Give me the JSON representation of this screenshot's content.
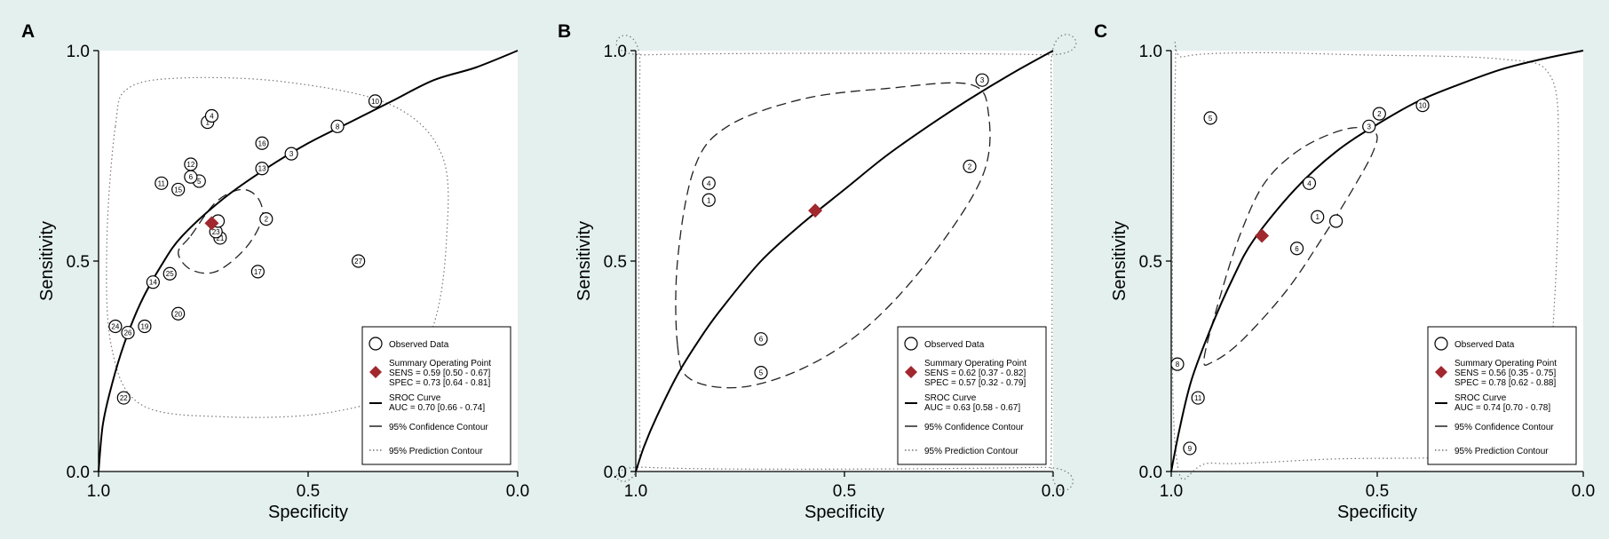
{
  "colors": {
    "background": "#e3f0ee",
    "plot_bg": "#ffffff",
    "summary_point": "#a0282e",
    "curve": "#000000"
  },
  "chart_data": [
    {
      "panel": "A",
      "type": "scatter",
      "xlabel": "Specificity",
      "ylabel": "Sensitivity",
      "x_reversed": true,
      "xlim": [
        1.0,
        0.0
      ],
      "ylim": [
        0.0,
        1.0
      ],
      "x_ticks": [
        "1.0",
        "0.5",
        "0.0"
      ],
      "y_ticks": [
        "0.0",
        "0.5",
        "1.0"
      ],
      "observed": [
        {
          "label": "1",
          "spec": 0.74,
          "sens": 0.83
        },
        {
          "label": "2",
          "spec": 0.6,
          "sens": 0.6
        },
        {
          "label": "3",
          "spec": 0.54,
          "sens": 0.755
        },
        {
          "label": "4",
          "spec": 0.73,
          "sens": 0.845
        },
        {
          "label": "5",
          "spec": 0.76,
          "sens": 0.69
        },
        {
          "label": "6",
          "spec": 0.78,
          "sens": 0.7
        },
        {
          "label": "8",
          "spec": 0.43,
          "sens": 0.82
        },
        {
          "label": "10",
          "spec": 0.34,
          "sens": 0.88
        },
        {
          "label": "11",
          "spec": 0.85,
          "sens": 0.685
        },
        {
          "label": "12",
          "spec": 0.78,
          "sens": 0.73
        },
        {
          "label": "13",
          "spec": 0.61,
          "sens": 0.72
        },
        {
          "label": "14",
          "spec": 0.87,
          "sens": 0.45
        },
        {
          "label": "15",
          "spec": 0.81,
          "sens": 0.67
        },
        {
          "label": "16",
          "spec": 0.61,
          "sens": 0.78
        },
        {
          "label": "17",
          "spec": 0.62,
          "sens": 0.475
        },
        {
          "label": "19",
          "spec": 0.89,
          "sens": 0.345
        },
        {
          "label": "20",
          "spec": 0.81,
          "sens": 0.375
        },
        {
          "label": "21",
          "spec": 0.71,
          "sens": 0.555
        },
        {
          "label": "22",
          "spec": 0.94,
          "sens": 0.175
        },
        {
          "label": "23",
          "spec": 0.72,
          "sens": 0.57
        },
        {
          "label": "24",
          "spec": 0.96,
          "sens": 0.345
        },
        {
          "label": "25",
          "spec": 0.83,
          "sens": 0.47
        },
        {
          "label": "26",
          "spec": 0.93,
          "sens": 0.33
        },
        {
          "label": "27",
          "spec": 0.38,
          "sens": 0.5
        },
        {
          "label": "",
          "spec": 0.715,
          "sens": 0.595
        }
      ],
      "summary": {
        "spec": 0.73,
        "sens": 0.59
      },
      "sroc_curve": [
        [
          1.0,
          0.0
        ],
        [
          0.99,
          0.11
        ],
        [
          0.97,
          0.2
        ],
        [
          0.94,
          0.3
        ],
        [
          0.9,
          0.4
        ],
        [
          0.85,
          0.49
        ],
        [
          0.8,
          0.56
        ],
        [
          0.7,
          0.65
        ],
        [
          0.6,
          0.72
        ],
        [
          0.5,
          0.78
        ],
        [
          0.4,
          0.83
        ],
        [
          0.3,
          0.88
        ],
        [
          0.2,
          0.93
        ],
        [
          0.1,
          0.96
        ],
        [
          0.0,
          1.0
        ]
      ],
      "confidence_contour": [
        [
          0.78,
          0.56
        ],
        [
          0.72,
          0.64
        ],
        [
          0.66,
          0.67
        ],
        [
          0.62,
          0.65
        ],
        [
          0.61,
          0.6
        ],
        [
          0.65,
          0.53
        ],
        [
          0.72,
          0.475
        ],
        [
          0.78,
          0.48
        ],
        [
          0.81,
          0.52
        ]
      ],
      "prediction_contour": [
        [
          0.96,
          0.82
        ],
        [
          0.93,
          0.91
        ],
        [
          0.8,
          0.935
        ],
        [
          0.55,
          0.925
        ],
        [
          0.3,
          0.87
        ],
        [
          0.18,
          0.75
        ],
        [
          0.17,
          0.55
        ],
        [
          0.2,
          0.35
        ],
        [
          0.28,
          0.2
        ],
        [
          0.45,
          0.14
        ],
        [
          0.7,
          0.13
        ],
        [
          0.9,
          0.16
        ],
        [
          0.97,
          0.3
        ],
        [
          0.98,
          0.55
        ]
      ],
      "legend": {
        "observed": "Observed Data",
        "summary_title": "Summary Operating Point",
        "sens": "SENS = 0.59 [0.50 - 0.67]",
        "spec": "SPEC = 0.73 [0.64 - 0.81]",
        "sroc_title": "SROC Curve",
        "auc": "AUC = 0.70 [0.66 - 0.74]",
        "confidence": "95% Confidence Contour",
        "prediction": "95% Prediction Contour"
      }
    },
    {
      "panel": "B",
      "type": "scatter",
      "xlabel": "Specificity",
      "ylabel": "Sensitivity",
      "x_reversed": true,
      "xlim": [
        1.0,
        0.0
      ],
      "ylim": [
        0.0,
        1.0
      ],
      "x_ticks": [
        "1.0",
        "0.5",
        "0.0"
      ],
      "y_ticks": [
        "0.0",
        "0.5",
        "1.0"
      ],
      "observed": [
        {
          "label": "1",
          "spec": 0.825,
          "sens": 0.645
        },
        {
          "label": "2",
          "spec": 0.2,
          "sens": 0.725
        },
        {
          "label": "3",
          "spec": 0.17,
          "sens": 0.93
        },
        {
          "label": "4",
          "spec": 0.825,
          "sens": 0.685
        },
        {
          "label": "5",
          "spec": 0.7,
          "sens": 0.235
        },
        {
          "label": "6",
          "spec": 0.7,
          "sens": 0.315
        }
      ],
      "summary": {
        "spec": 0.57,
        "sens": 0.62
      },
      "sroc_curve": [
        [
          1.0,
          0.0
        ],
        [
          0.98,
          0.06
        ],
        [
          0.95,
          0.13
        ],
        [
          0.9,
          0.23
        ],
        [
          0.85,
          0.31
        ],
        [
          0.8,
          0.38
        ],
        [
          0.7,
          0.5
        ],
        [
          0.6,
          0.59
        ],
        [
          0.5,
          0.67
        ],
        [
          0.4,
          0.75
        ],
        [
          0.3,
          0.82
        ],
        [
          0.2,
          0.885
        ],
        [
          0.1,
          0.945
        ],
        [
          0.0,
          1.0
        ]
      ],
      "confidence_contour": [
        [
          0.9,
          0.3
        ],
        [
          0.9,
          0.5
        ],
        [
          0.86,
          0.72
        ],
        [
          0.78,
          0.82
        ],
        [
          0.6,
          0.885
        ],
        [
          0.4,
          0.91
        ],
        [
          0.2,
          0.92
        ],
        [
          0.155,
          0.85
        ],
        [
          0.17,
          0.7
        ],
        [
          0.3,
          0.5
        ],
        [
          0.45,
          0.34
        ],
        [
          0.6,
          0.245
        ],
        [
          0.75,
          0.2
        ],
        [
          0.87,
          0.22
        ]
      ],
      "prediction_contour": [
        [
          0.99,
          0.06
        ],
        [
          0.99,
          0.96
        ],
        [
          0.97,
          0.99
        ],
        [
          0.02,
          0.99
        ],
        [
          0.005,
          0.96
        ],
        [
          0.005,
          0.03
        ],
        [
          0.03,
          0.01
        ],
        [
          0.97,
          0.01
        ]
      ],
      "legend": {
        "observed": "Observed Data",
        "summary_title": "Summary Operating Point",
        "sens": "SENS = 0.62 [0.37 - 0.82]",
        "spec": "SPEC = 0.57 [0.32 - 0.79]",
        "sroc_title": "SROC Curve",
        "auc": "AUC = 0.63 [0.58 - 0.67]",
        "confidence": "95% Confidence Contour",
        "prediction": "95% Prediction Contour"
      }
    },
    {
      "panel": "C",
      "type": "scatter",
      "xlabel": "Specificity",
      "ylabel": "Sensitivity",
      "x_reversed": true,
      "xlim": [
        1.0,
        0.0
      ],
      "ylim": [
        0.0,
        1.0
      ],
      "x_ticks": [
        "1.0",
        "0.5",
        "0.0"
      ],
      "y_ticks": [
        "0.0",
        "0.5",
        "1.0"
      ],
      "observed": [
        {
          "label": "1",
          "spec": 0.645,
          "sens": 0.605
        },
        {
          "label": "2",
          "spec": 0.495,
          "sens": 0.85
        },
        {
          "label": "3",
          "spec": 0.52,
          "sens": 0.82
        },
        {
          "label": "4",
          "spec": 0.665,
          "sens": 0.685
        },
        {
          "label": "5",
          "spec": 0.905,
          "sens": 0.84
        },
        {
          "label": "6",
          "spec": 0.695,
          "sens": 0.53
        },
        {
          "label": "8",
          "spec": 0.985,
          "sens": 0.255
        },
        {
          "label": "9",
          "spec": 0.955,
          "sens": 0.055
        },
        {
          "label": "10",
          "spec": 0.39,
          "sens": 0.87
        },
        {
          "label": "11",
          "spec": 0.935,
          "sens": 0.175
        },
        {
          "label": "",
          "spec": 0.6,
          "sens": 0.595
        }
      ],
      "summary": {
        "spec": 0.78,
        "sens": 0.56
      },
      "sroc_curve": [
        [
          1.0,
          0.0
        ],
        [
          0.98,
          0.1
        ],
        [
          0.95,
          0.22
        ],
        [
          0.9,
          0.35
        ],
        [
          0.85,
          0.46
        ],
        [
          0.8,
          0.55
        ],
        [
          0.7,
          0.67
        ],
        [
          0.6,
          0.76
        ],
        [
          0.5,
          0.825
        ],
        [
          0.4,
          0.88
        ],
        [
          0.3,
          0.92
        ],
        [
          0.2,
          0.955
        ],
        [
          0.1,
          0.98
        ],
        [
          0.0,
          1.0
        ]
      ],
      "confidence_contour": [
        [
          0.92,
          0.27
        ],
        [
          0.88,
          0.42
        ],
        [
          0.83,
          0.57
        ],
        [
          0.77,
          0.69
        ],
        [
          0.68,
          0.77
        ],
        [
          0.57,
          0.815
        ],
        [
          0.505,
          0.805
        ],
        [
          0.51,
          0.76
        ],
        [
          0.56,
          0.67
        ],
        [
          0.63,
          0.56
        ],
        [
          0.72,
          0.43
        ],
        [
          0.83,
          0.31
        ],
        [
          0.9,
          0.26
        ]
      ],
      "prediction_contour": [
        [
          0.99,
          0.06
        ],
        [
          0.99,
          0.94
        ],
        [
          0.97,
          0.985
        ],
        [
          0.8,
          0.995
        ],
        [
          0.55,
          0.99
        ],
        [
          0.2,
          0.98
        ],
        [
          0.08,
          0.94
        ],
        [
          0.06,
          0.75
        ],
        [
          0.07,
          0.4
        ],
        [
          0.1,
          0.1
        ],
        [
          0.2,
          0.04
        ],
        [
          0.6,
          0.03
        ],
        [
          0.9,
          0.02
        ]
      ],
      "legend": {
        "observed": "Observed Data",
        "summary_title": "Summary Operating Point",
        "sens": "SENS = 0.56 [0.35 - 0.75]",
        "spec": "SPEC = 0.78 [0.62 - 0.88]",
        "sroc_title": "SROC Curve",
        "auc": "AUC = 0.74 [0.70 - 0.78]",
        "confidence": "95% Confidence Contour",
        "prediction": "95% Prediction Contour"
      }
    }
  ]
}
